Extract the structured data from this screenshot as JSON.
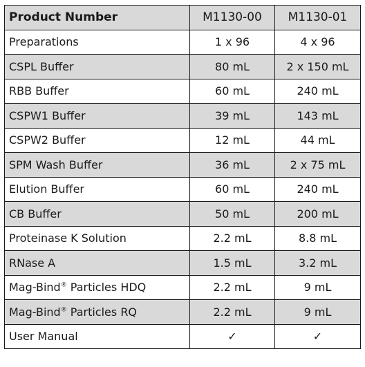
{
  "table": {
    "headers": {
      "label": "Product Number",
      "col_a": "M1130-00",
      "col_b": "M1130-01"
    },
    "rows": [
      {
        "label": "Preparations",
        "a": "1 x 96",
        "b": "4 x 96",
        "shaded": false
      },
      {
        "label": "CSPL Buffer",
        "a": "80 mL",
        "b": "2 x 150 mL",
        "shaded": true
      },
      {
        "label": "RBB Buffer",
        "a": "60 mL",
        "b": "240 mL",
        "shaded": false
      },
      {
        "label": "CSPW1 Buffer",
        "a": "39 mL",
        "b": "143 mL",
        "shaded": true
      },
      {
        "label": "CSPW2 Buffer",
        "a": "12 mL",
        "b": "44 mL",
        "shaded": false
      },
      {
        "label": "SPM Wash Buffer",
        "a": "36 mL",
        "b": "2 x 75 mL",
        "shaded": true
      },
      {
        "label": "Elution Buffer",
        "a": "60 mL",
        "b": "240 mL",
        "shaded": false
      },
      {
        "label": "CB Buffer",
        "a": "50 mL",
        "b": "200 mL",
        "shaded": true
      },
      {
        "label": "Proteinase K Solution",
        "a": "2.2 mL",
        "b": "8.8 mL",
        "shaded": false
      },
      {
        "label": "RNase A",
        "a": "1.5 mL",
        "b": "3.2 mL",
        "shaded": true
      },
      {
        "label": "Mag-Bind",
        "sup": "®",
        "label_suffix": " Particles HDQ",
        "a": "2.2 mL",
        "b": "9 mL",
        "shaded": false
      },
      {
        "label": "Mag-Bind",
        "sup": "®",
        "label_suffix": " Particles RQ",
        "a": "2.2 mL",
        "b": "9 mL",
        "shaded": true
      },
      {
        "label": "User Manual",
        "a": "✓",
        "b": "✓",
        "shaded": false
      }
    ]
  }
}
